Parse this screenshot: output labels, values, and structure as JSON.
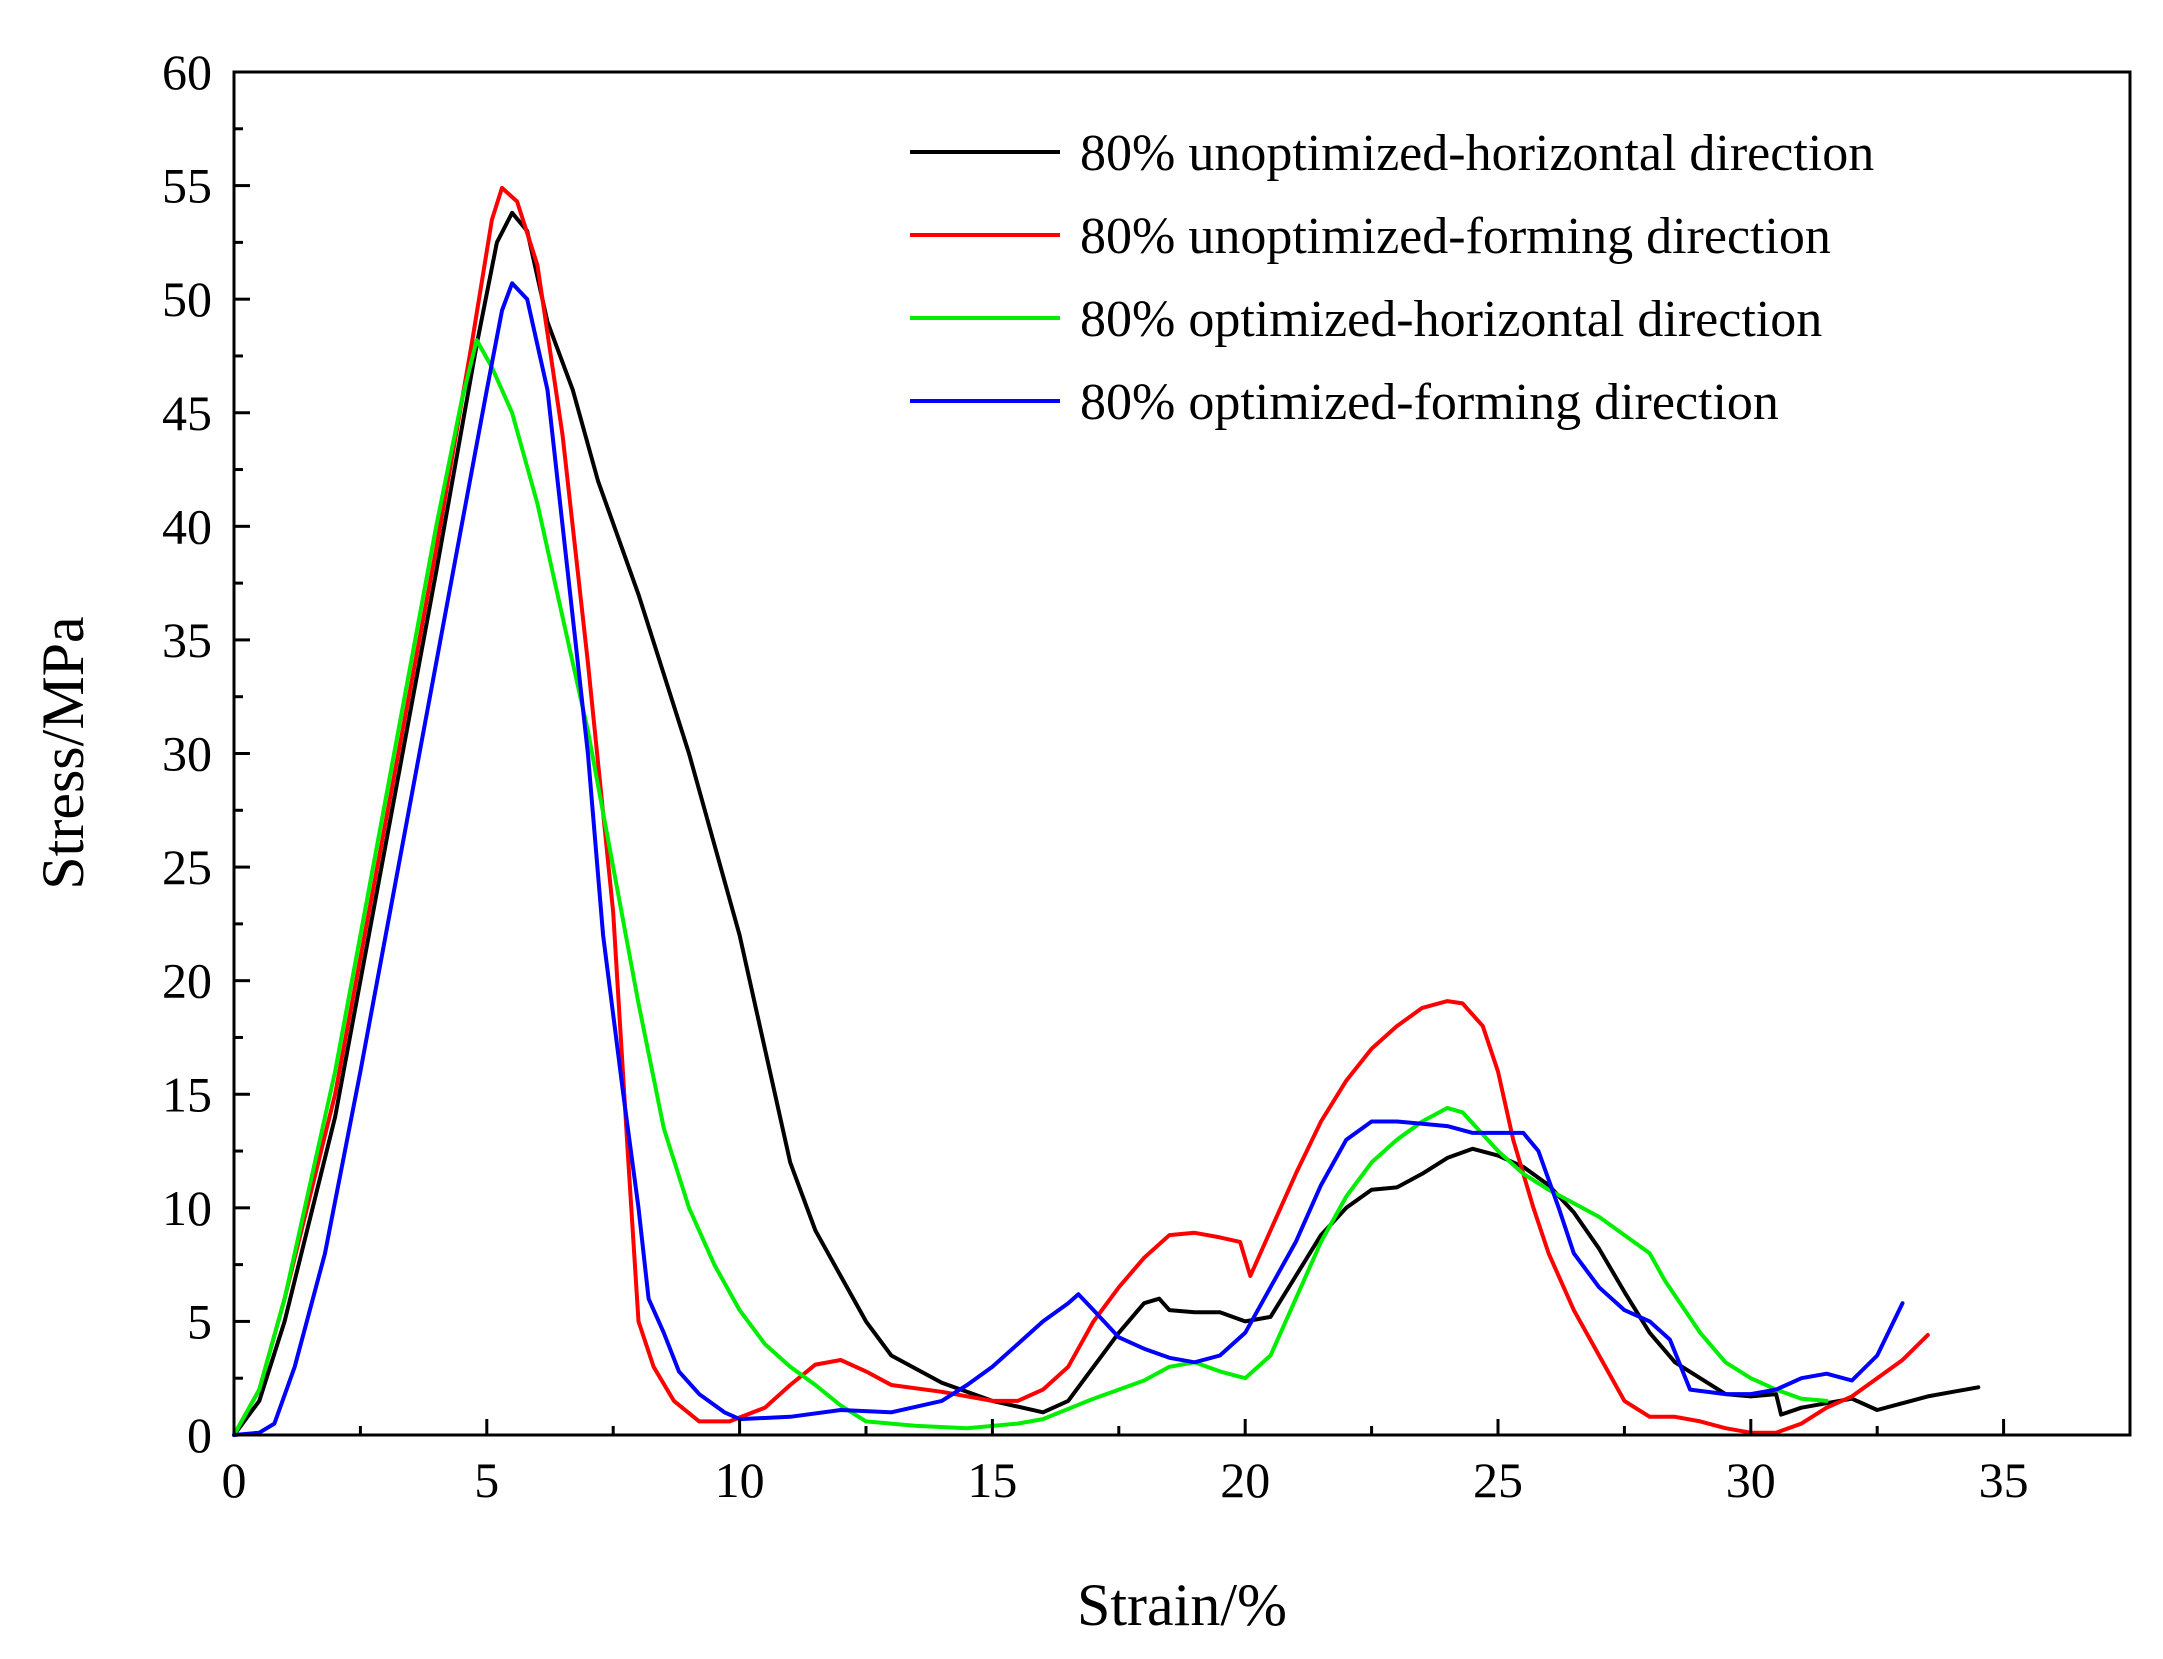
{
  "chart_data": {
    "type": "line",
    "title": "",
    "xlabel": "Strain/%",
    "ylabel": "Stress/MPa",
    "xlim": [
      0,
      37.5
    ],
    "ylim": [
      0,
      60
    ],
    "xticks": [
      0,
      5,
      10,
      15,
      20,
      25,
      30,
      35
    ],
    "yticks": [
      0,
      5,
      10,
      15,
      20,
      25,
      30,
      35,
      40,
      45,
      50,
      55,
      60
    ],
    "grid": false,
    "legend_position": "top-right",
    "series": [
      {
        "name": "80% unoptimized-horizontal direction",
        "color": "#000000",
        "points": [
          [
            0,
            0
          ],
          [
            0.5,
            1.5
          ],
          [
            1,
            5
          ],
          [
            2,
            14
          ],
          [
            3,
            26
          ],
          [
            4,
            38
          ],
          [
            4.8,
            48
          ],
          [
            5.2,
            52.5
          ],
          [
            5.5,
            53.8
          ],
          [
            5.8,
            53
          ],
          [
            6.2,
            49
          ],
          [
            6.7,
            46
          ],
          [
            7.2,
            42
          ],
          [
            8,
            37
          ],
          [
            9,
            30
          ],
          [
            9.5,
            26
          ],
          [
            10,
            22
          ],
          [
            10.5,
            17
          ],
          [
            11,
            12
          ],
          [
            11.5,
            9
          ],
          [
            12,
            7
          ],
          [
            12.5,
            5
          ],
          [
            13,
            3.5
          ],
          [
            14,
            2.3
          ],
          [
            15,
            1.5
          ],
          [
            16,
            1
          ],
          [
            16.5,
            1.5
          ],
          [
            17,
            3
          ],
          [
            17.5,
            4.5
          ],
          [
            18,
            5.8
          ],
          [
            18.3,
            6
          ],
          [
            18.5,
            5.5
          ],
          [
            19,
            5.4
          ],
          [
            19.5,
            5.4
          ],
          [
            20,
            5
          ],
          [
            20.5,
            5.2
          ],
          [
            21,
            7
          ],
          [
            21.5,
            8.8
          ],
          [
            22,
            10
          ],
          [
            22.5,
            10.8
          ],
          [
            23,
            10.9
          ],
          [
            23.5,
            11.5
          ],
          [
            24,
            12.2
          ],
          [
            24.5,
            12.6
          ],
          [
            25,
            12.3
          ],
          [
            25.5,
            11.8
          ],
          [
            26,
            11
          ],
          [
            26.5,
            9.8
          ],
          [
            27,
            8.2
          ],
          [
            27.5,
            6.3
          ],
          [
            28,
            4.5
          ],
          [
            28.5,
            3.2
          ],
          [
            29,
            2.5
          ],
          [
            29.5,
            1.8
          ],
          [
            30,
            1.7
          ],
          [
            30.5,
            1.8
          ],
          [
            30.6,
            0.9
          ],
          [
            31,
            1.2
          ],
          [
            31.5,
            1.4
          ],
          [
            32,
            1.6
          ],
          [
            32.5,
            1.1
          ],
          [
            33,
            1.4
          ],
          [
            33.5,
            1.7
          ],
          [
            34,
            1.9
          ],
          [
            34.5,
            2.1
          ]
        ]
      },
      {
        "name": "80% unoptimized-forming direction",
        "color": "#ff0000",
        "points": [
          [
            0,
            0
          ],
          [
            0.5,
            2
          ],
          [
            1,
            6
          ],
          [
            2,
            15
          ],
          [
            3,
            27
          ],
          [
            4,
            39
          ],
          [
            4.7,
            48
          ],
          [
            5.1,
            53.5
          ],
          [
            5.3,
            54.9
          ],
          [
            5.6,
            54.3
          ],
          [
            6,
            51.5
          ],
          [
            6.5,
            44
          ],
          [
            7,
            34
          ],
          [
            7.5,
            23
          ],
          [
            7.8,
            12
          ],
          [
            8,
            5
          ],
          [
            8.3,
            3
          ],
          [
            8.7,
            1.5
          ],
          [
            9.2,
            0.6
          ],
          [
            9.8,
            0.6
          ],
          [
            10.5,
            1.2
          ],
          [
            11,
            2.2
          ],
          [
            11.5,
            3.1
          ],
          [
            12,
            3.3
          ],
          [
            12.5,
            2.8
          ],
          [
            13,
            2.2
          ],
          [
            14,
            1.9
          ],
          [
            15,
            1.5
          ],
          [
            15.5,
            1.5
          ],
          [
            16,
            2
          ],
          [
            16.5,
            3
          ],
          [
            17,
            5
          ],
          [
            17.5,
            6.5
          ],
          [
            18,
            7.8
          ],
          [
            18.5,
            8.8
          ],
          [
            19,
            8.9
          ],
          [
            19.5,
            8.7
          ],
          [
            19.9,
            8.5
          ],
          [
            20.1,
            7
          ],
          [
            20.5,
            9
          ],
          [
            21,
            11.5
          ],
          [
            21.5,
            13.8
          ],
          [
            22,
            15.6
          ],
          [
            22.5,
            17
          ],
          [
            23,
            18
          ],
          [
            23.5,
            18.8
          ],
          [
            24,
            19.1
          ],
          [
            24.3,
            19
          ],
          [
            24.7,
            18
          ],
          [
            25,
            16
          ],
          [
            25.3,
            13
          ],
          [
            25.7,
            10
          ],
          [
            26,
            8
          ],
          [
            26.5,
            5.5
          ],
          [
            27,
            3.5
          ],
          [
            27.5,
            1.5
          ],
          [
            28,
            0.8
          ],
          [
            28.5,
            0.8
          ],
          [
            29,
            0.6
          ],
          [
            29.5,
            0.3
          ],
          [
            30,
            0.1
          ],
          [
            30.5,
            0.1
          ],
          [
            31,
            0.5
          ],
          [
            31.5,
            1.2
          ],
          [
            32,
            1.7
          ],
          [
            32.5,
            2.5
          ],
          [
            33,
            3.3
          ],
          [
            33.5,
            4.4
          ]
        ]
      },
      {
        "name": "80% optimized-horizontal direction",
        "color": "#00ee00",
        "points": [
          [
            0,
            0
          ],
          [
            0.5,
            2
          ],
          [
            1,
            6
          ],
          [
            2,
            16
          ],
          [
            3,
            28
          ],
          [
            4,
            40
          ],
          [
            4.5,
            45.5
          ],
          [
            4.8,
            48.2
          ],
          [
            5.1,
            47
          ],
          [
            5.5,
            45
          ],
          [
            6,
            41
          ],
          [
            6.5,
            36
          ],
          [
            7,
            31
          ],
          [
            7.5,
            25
          ],
          [
            8,
            19
          ],
          [
            8.5,
            13.5
          ],
          [
            9,
            10
          ],
          [
            9.5,
            7.5
          ],
          [
            10,
            5.5
          ],
          [
            10.5,
            4
          ],
          [
            11,
            3
          ],
          [
            11.5,
            2.2
          ],
          [
            12,
            1.3
          ],
          [
            12.5,
            0.6
          ],
          [
            13.5,
            0.4
          ],
          [
            14.5,
            0.3
          ],
          [
            15.5,
            0.5
          ],
          [
            16,
            0.7
          ],
          [
            17,
            1.6
          ],
          [
            17.5,
            2
          ],
          [
            18,
            2.4
          ],
          [
            18.5,
            3
          ],
          [
            19,
            3.2
          ],
          [
            19.5,
            2.8
          ],
          [
            20,
            2.5
          ],
          [
            20.5,
            3.5
          ],
          [
            21,
            6
          ],
          [
            21.5,
            8.5
          ],
          [
            22,
            10.5
          ],
          [
            22.5,
            12
          ],
          [
            23,
            13
          ],
          [
            23.5,
            13.8
          ],
          [
            24,
            14.4
          ],
          [
            24.3,
            14.2
          ],
          [
            25,
            12.5
          ],
          [
            25.5,
            11.5
          ],
          [
            26,
            10.8
          ],
          [
            26.5,
            10.2
          ],
          [
            27,
            9.6
          ],
          [
            27.5,
            8.8
          ],
          [
            28,
            8
          ],
          [
            28.3,
            6.8
          ],
          [
            29,
            4.5
          ],
          [
            29.5,
            3.2
          ],
          [
            30,
            2.5
          ],
          [
            30.5,
            2
          ],
          [
            31,
            1.6
          ],
          [
            31.5,
            1.5
          ]
        ]
      },
      {
        "name": "80% optimized-forming direction",
        "color": "#0000ff",
        "points": [
          [
            0,
            0
          ],
          [
            0.5,
            0.1
          ],
          [
            0.8,
            0.5
          ],
          [
            1.2,
            3
          ],
          [
            1.8,
            8
          ],
          [
            2.5,
            16
          ],
          [
            3.5,
            28
          ],
          [
            4.5,
            40
          ],
          [
            5,
            46
          ],
          [
            5.3,
            49.5
          ],
          [
            5.5,
            50.7
          ],
          [
            5.8,
            50
          ],
          [
            6.2,
            46
          ],
          [
            6.6,
            38
          ],
          [
            7,
            30
          ],
          [
            7.3,
            22
          ],
          [
            7.7,
            15
          ],
          [
            8,
            10
          ],
          [
            8.2,
            6
          ],
          [
            8.5,
            4.5
          ],
          [
            8.8,
            2.8
          ],
          [
            9.2,
            1.8
          ],
          [
            9.7,
            1
          ],
          [
            10,
            0.7
          ],
          [
            11,
            0.8
          ],
          [
            12,
            1.1
          ],
          [
            13,
            1
          ],
          [
            14,
            1.5
          ],
          [
            14.5,
            2.2
          ],
          [
            15,
            3
          ],
          [
            15.5,
            4
          ],
          [
            16,
            5
          ],
          [
            16.5,
            5.8
          ],
          [
            16.7,
            6.2
          ],
          [
            17,
            5.5
          ],
          [
            17.5,
            4.3
          ],
          [
            18,
            3.8
          ],
          [
            18.5,
            3.4
          ],
          [
            19,
            3.2
          ],
          [
            19.5,
            3.5
          ],
          [
            20,
            4.5
          ],
          [
            20.5,
            6.5
          ],
          [
            21,
            8.5
          ],
          [
            21.5,
            11
          ],
          [
            22,
            13
          ],
          [
            22.5,
            13.8
          ],
          [
            23,
            13.8
          ],
          [
            23.5,
            13.7
          ],
          [
            24,
            13.6
          ],
          [
            24.5,
            13.3
          ],
          [
            25,
            13.3
          ],
          [
            25.5,
            13.3
          ],
          [
            25.8,
            12.5
          ],
          [
            26.2,
            10
          ],
          [
            26.5,
            8
          ],
          [
            27,
            6.5
          ],
          [
            27.5,
            5.5
          ],
          [
            28,
            5
          ],
          [
            28.4,
            4.2
          ],
          [
            28.8,
            2
          ],
          [
            29.5,
            1.8
          ],
          [
            30,
            1.8
          ],
          [
            30.5,
            2
          ],
          [
            31,
            2.5
          ],
          [
            31.5,
            2.7
          ],
          [
            32,
            2.4
          ],
          [
            32.5,
            3.5
          ],
          [
            33,
            5.8
          ]
        ]
      }
    ]
  }
}
